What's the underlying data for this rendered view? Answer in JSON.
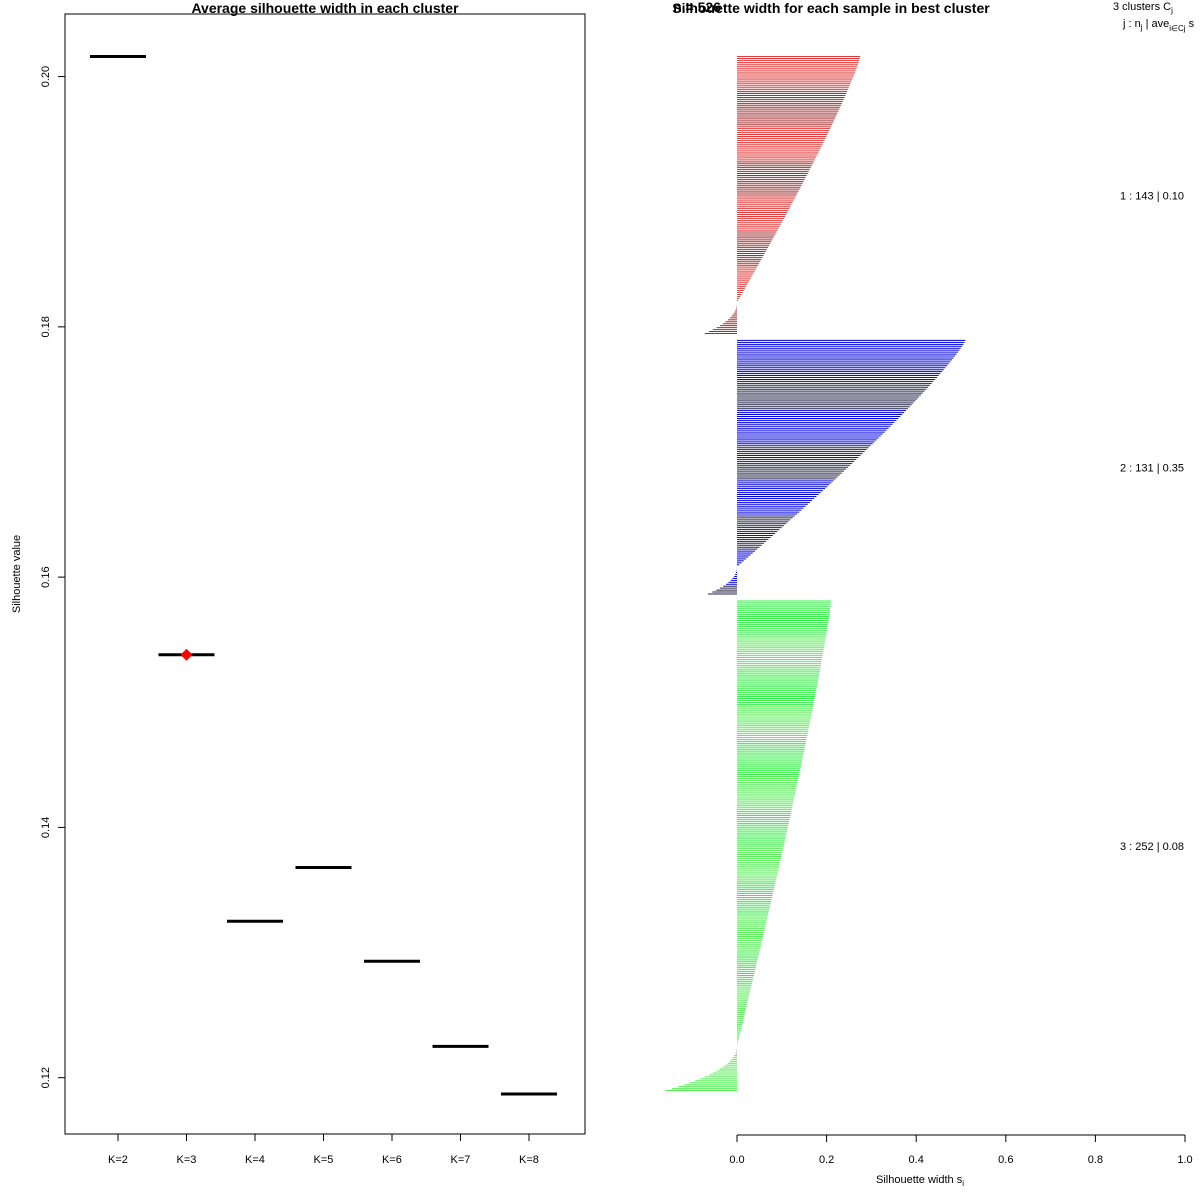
{
  "chart_data": [
    {
      "type": "scatter",
      "title": "Average silhouette width in each cluster",
      "xlabel": "",
      "ylabel": "Silhouette value",
      "ylim": [
        0.1155,
        0.205
      ],
      "yticks": [
        0.12,
        0.14,
        0.16,
        0.18,
        0.2
      ],
      "ytick_labels": [
        "0.12",
        "0.14",
        "0.16",
        "0.18",
        "0.20"
      ],
      "categories": [
        "K=2",
        "K=3",
        "K=4",
        "K=5",
        "K=6",
        "K=7",
        "K=8"
      ],
      "values": [
        0.2016,
        0.1538,
        0.1325,
        0.1368,
        0.1293,
        0.1225,
        0.1187
      ],
      "best_index": 1,
      "line_color": "#000000",
      "best_marker_color": "#ff0000"
    },
    {
      "type": "bar",
      "title": "Silhouette width for each sample in best cluster",
      "title_overlap_text": "n = 526",
      "xlabel": "Silhouette width s",
      "xlabel_subscript": "i",
      "xlim": [
        0,
        1
      ],
      "xticks": [
        0,
        0.2,
        0.4,
        0.6,
        0.8,
        1
      ],
      "xtick_labels": [
        "0.0",
        "0.2",
        "0.4",
        "0.6",
        "0.8",
        "1.0"
      ],
      "header_line1": "3  clusters  C",
      "header_line1_sub": "j",
      "header_line2": "j :  n",
      "header_line2_sub": "j",
      "header_line2_mid": " | ave",
      "header_line2_sub2": "i∈Cj",
      "header_line2_end": "  s",
      "clusters": [
        {
          "id": 1,
          "n": 143,
          "label": "1 :  143  |  0.10",
          "color": "#e03a3a",
          "stripe": "#a03030",
          "max": 0.275,
          "avg": 0.1,
          "min_neg": -0.072
        },
        {
          "id": 2,
          "n": 131,
          "label": "2 :  131  |  0.35",
          "color": "#0000dd",
          "stripe": "#222244",
          "max": 0.51,
          "avg": 0.35,
          "min_neg": -0.065
        },
        {
          "id": 3,
          "n": 252,
          "label": "3 :  252  |  0.08",
          "color": "#33ee44",
          "stripe": "#55ee55",
          "max": 0.21,
          "avg": 0.08,
          "min_neg": -0.16
        }
      ]
    }
  ]
}
